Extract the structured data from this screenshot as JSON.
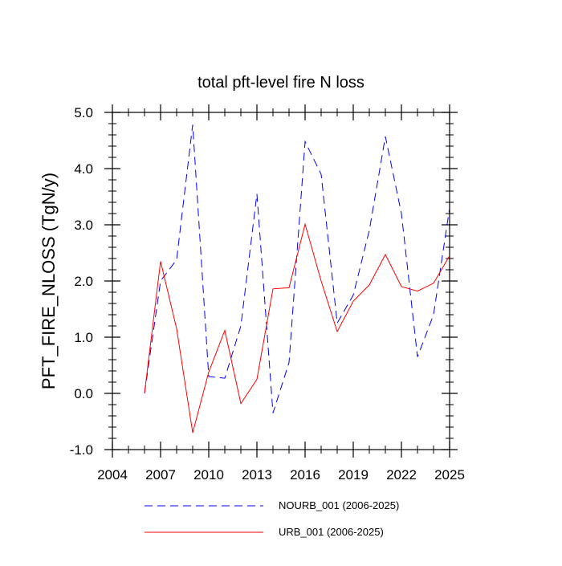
{
  "chart_data": {
    "type": "line",
    "title": "total pft-level fire N loss",
    "xlabel": "",
    "ylabel": "PFT_FIRE_NLOSS  (TgN/y)",
    "xlim": [
      2004,
      2025
    ],
    "ylim": [
      -1.0,
      5.0
    ],
    "xticks": [
      2004,
      2007,
      2010,
      2013,
      2016,
      2019,
      2022,
      2025
    ],
    "yticks": [
      -1.0,
      0.0,
      1.0,
      2.0,
      3.0,
      4.0,
      5.0
    ],
    "xtick_labels": [
      "2004",
      "2007",
      "2010",
      "2013",
      "2016",
      "2019",
      "2022",
      "2025"
    ],
    "ytick_labels": [
      "-1.0",
      "0.0",
      "1.0",
      "2.0",
      "3.0",
      "4.0",
      "5.0"
    ],
    "grid": false,
    "legend_position": "bottom",
    "x": [
      2006,
      2007,
      2008,
      2009,
      2010,
      2011,
      2012,
      2013,
      2014,
      2015,
      2016,
      2017,
      2018,
      2019,
      2020,
      2021,
      2022,
      2023,
      2024,
      2025
    ],
    "series": [
      {
        "name": "NOURB_001 (2006-2025)",
        "color": "#0000ff",
        "style": "dashed",
        "values": [
          0.0,
          2.0,
          2.38,
          4.78,
          0.3,
          0.27,
          1.2,
          3.55,
          -0.35,
          0.55,
          4.48,
          3.9,
          1.25,
          1.75,
          2.9,
          4.57,
          3.2,
          0.65,
          1.4,
          3.3
        ]
      },
      {
        "name": "URB_001 (2006-2025)",
        "color": "#ff0000",
        "style": "solid",
        "values": [
          0.0,
          2.35,
          1.15,
          -0.7,
          0.38,
          1.12,
          -0.18,
          0.25,
          1.86,
          1.88,
          3.01,
          2.0,
          1.1,
          1.64,
          1.93,
          2.47,
          1.9,
          1.82,
          1.96,
          2.45
        ]
      }
    ]
  }
}
